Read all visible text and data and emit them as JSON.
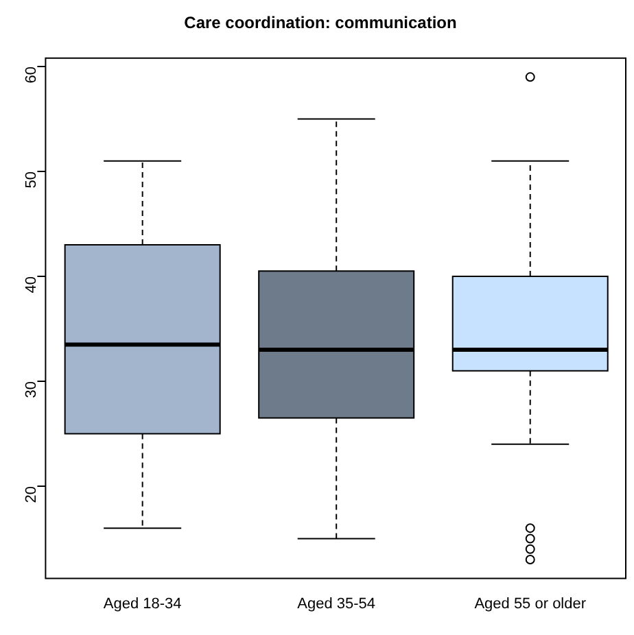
{
  "chart_data": {
    "type": "box",
    "title": "Care coordination: communication",
    "categories": [
      "Aged 18-34",
      "Aged 35-54",
      "Aged 55 or older"
    ],
    "colors": [
      "#a2b5cd",
      "#6e7b8b",
      "#c6e2ff"
    ],
    "boxes": [
      {
        "low": 16,
        "q1": 25,
        "median": 33.5,
        "q3": 43,
        "high": 51
      },
      {
        "low": 15,
        "q1": 26.5,
        "median": 33,
        "q3": 40.5,
        "high": 55
      },
      {
        "low": 24,
        "q1": 31,
        "median": 33,
        "q3": 40,
        "high": 51,
        "outliers": [
          59,
          16,
          15,
          14,
          13
        ]
      }
    ],
    "ylim": [
      11.2,
      60.8
    ],
    "yticks": [
      20,
      30,
      40,
      50,
      60
    ],
    "grid": false,
    "legend": false
  }
}
